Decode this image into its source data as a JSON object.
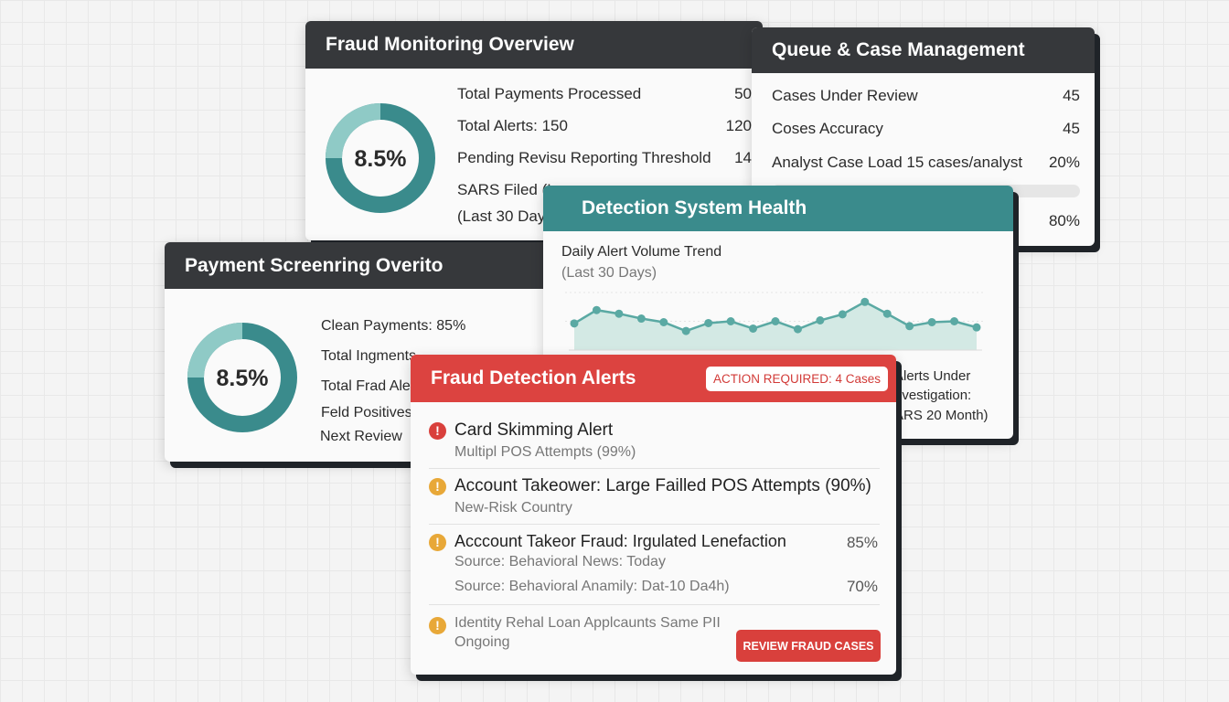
{
  "colors": {
    "teal": "#3a8b8c",
    "teal_light": "#8fcac6",
    "dark_header": "#36383b",
    "alert_red": "#dc4340",
    "warning_amber": "#e8a838"
  },
  "monitoring": {
    "title": "Fraud Monitoring Overview",
    "donut_label": "8.5%",
    "donut_light_fraction": 0.25,
    "rows": [
      {
        "label": "Total Payments Processed",
        "value": "50"
      },
      {
        "label": "Total Alerts: 150",
        "value": "120"
      },
      {
        "label": "Pending Revisu Reporting Threshold",
        "value": "14"
      },
      {
        "label": "SARS Filed (L",
        "value": ""
      },
      {
        "label": "(Last 30 Day",
        "value": ""
      }
    ]
  },
  "queue": {
    "title": "Queue & Case Management",
    "rows": [
      {
        "label": "Cases Under Review",
        "value": "45"
      },
      {
        "label": "Coses Accuracy",
        "value": "45"
      },
      {
        "label": "Analyst Case Load 15 cases/analyst",
        "value": "20%"
      }
    ],
    "bar_value": "80%"
  },
  "screening": {
    "title": "Payment Screenring Overito",
    "donut_label": "8.5%",
    "donut_light_fraction": 0.25,
    "rows": [
      "Clean Payments: 85%",
      "Total Ingments",
      "Total Frad Ale",
      "Feld Positives",
      "Next Review"
    ]
  },
  "health": {
    "title": "Detection System Health",
    "chart_title": "Daily Alert Volume Trend",
    "chart_subtitle": "(Last 30 Days)",
    "side_text": [
      "Alerts Under",
      "nvestigation:",
      "ARS 20 Month)"
    ]
  },
  "chart_data": {
    "type": "area",
    "title": "Daily Alert Volume Trend",
    "subtitle": "(Last 30 Days)",
    "xlabel": "",
    "ylabel": "",
    "grid": true,
    "ylim": [
      0,
      19
    ],
    "values": [
      8.8,
      13.2,
      12,
      10.4,
      9.2,
      6.3,
      8.9,
      9.5,
      7.1,
      9.5,
      6.9,
      9.8,
      11.8,
      15.9,
      12,
      7.9,
      9.2,
      9.5,
      7.5
    ]
  },
  "alerts": {
    "title": "Fraud Detection Alerts",
    "badge": "ACTION REQUIRED: 4 Cases",
    "button": "REVIEW FRAUD CASES",
    "items": [
      {
        "severity": "critical",
        "title": "Card Skimming Alert",
        "sub": "Multipl POS Attempts (99%)"
      },
      {
        "severity": "warning",
        "title": "Account Takeower: Large Failled POS Attempts (90%)",
        "sub": "New-Risk Country"
      },
      {
        "severity": "warning",
        "title": "Acccount Takeor Fraud: Irgulated Lenefaction",
        "pct": "85%",
        "sub": "Source: Behavioral News: Today",
        "sub2": "Source: Behavioral Anamily: Dat-10 Da4h)",
        "pct2": "70%"
      },
      {
        "severity": "warning",
        "title": "Identity Rehal Loan Applcaunts Same PII",
        "sub": "Ongoing"
      }
    ]
  }
}
